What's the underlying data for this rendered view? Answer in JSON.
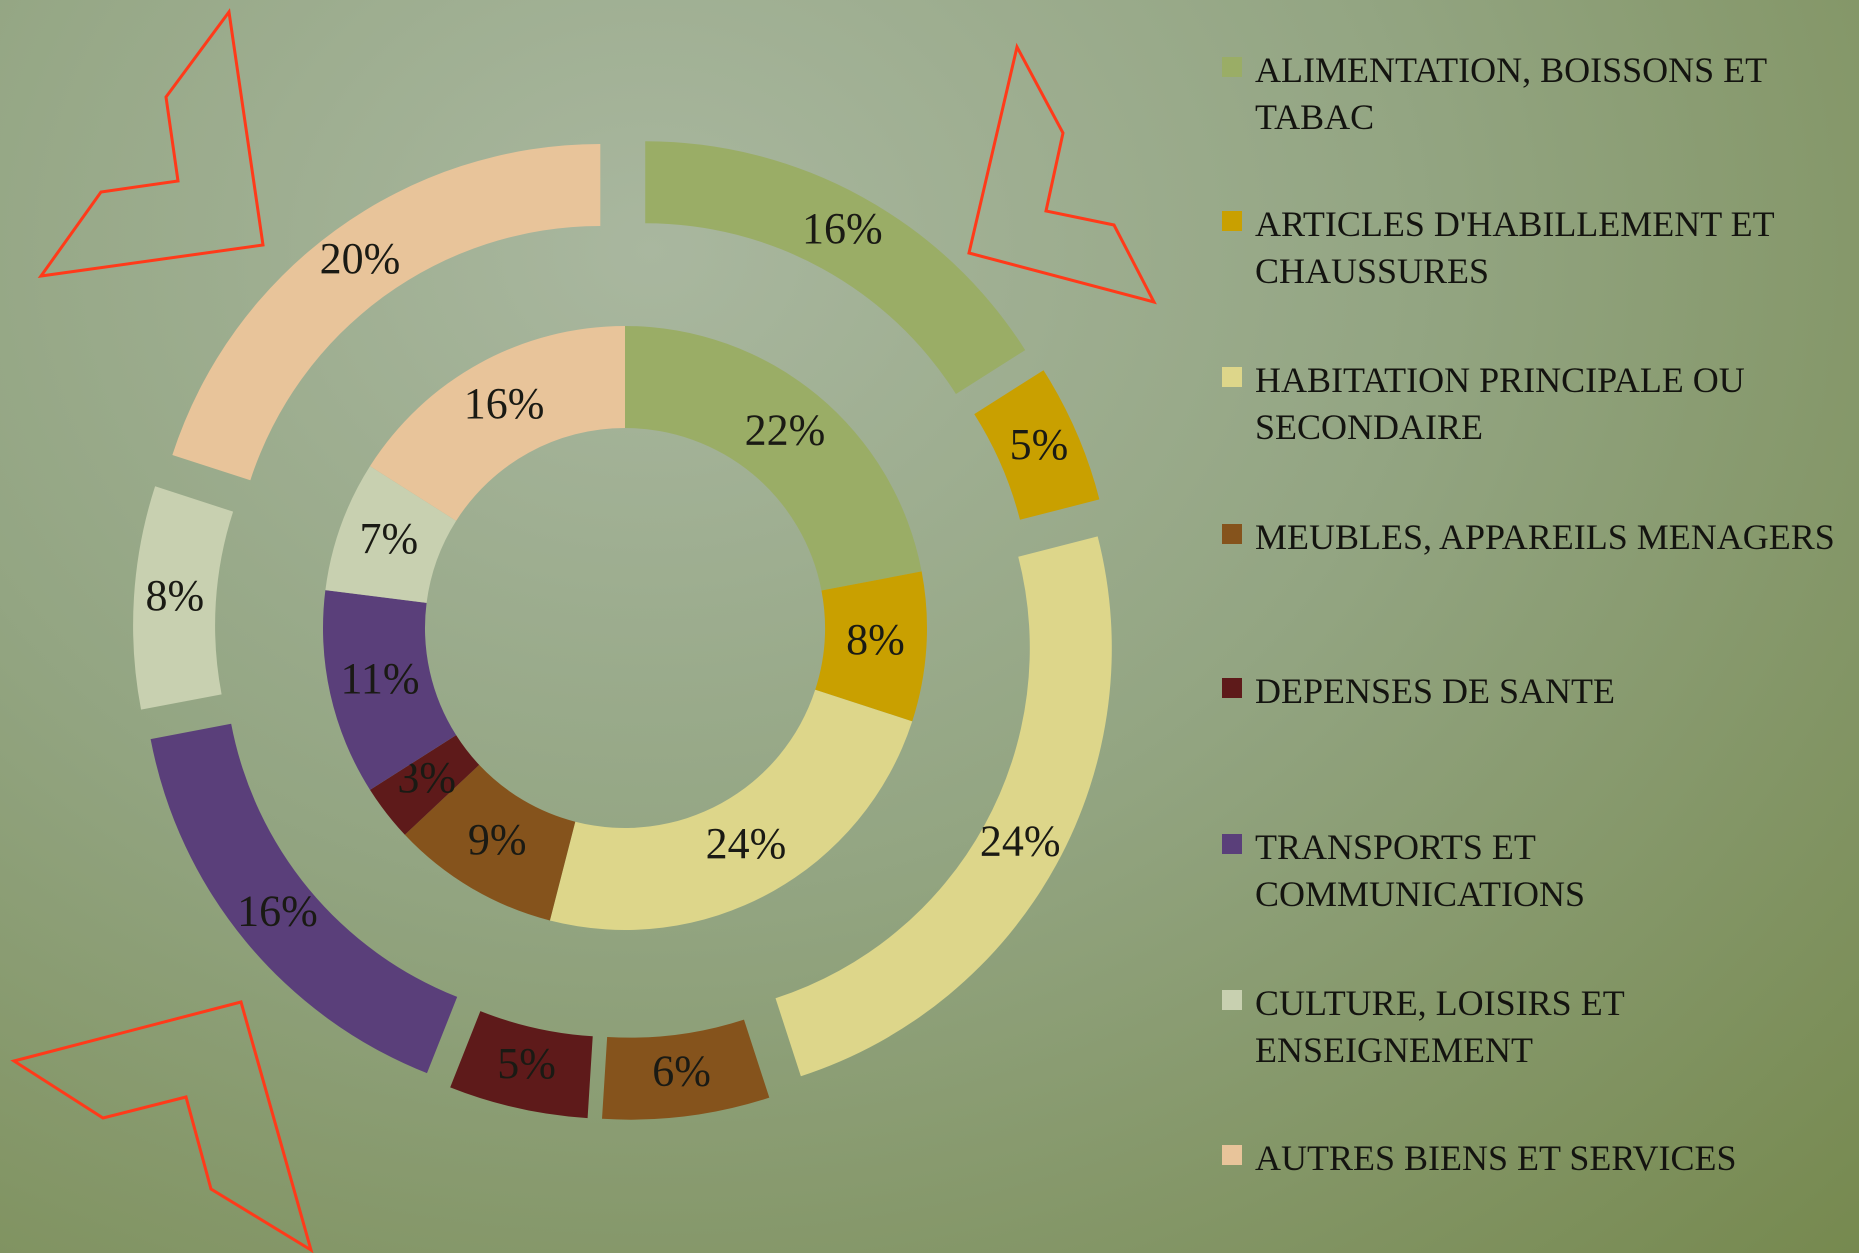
{
  "chart_data": {
    "type": "donut",
    "categories": [
      "ALIMENTATION, BOISSONS ET TABAC",
      "ARTICLES D'HABILLEMENT ET CHAUSSURES",
      "HABITATION PRINCIPALE OU SECONDAIRE",
      "MEUBLES, APPAREILS MENAGERS",
      "DEPENSES DE SANTE",
      "TRANSPORTS ET COMMUNICATIONS",
      "CULTURE, LOISIRS ET ENSEIGNEMENT",
      "AUTRES BIENS ET SERVICES"
    ],
    "colors": [
      "#9aad66",
      "#c9a000",
      "#ddd68a",
      "#85531c",
      "#5e1a1a",
      "#5a3f7a",
      "#c8d0b0",
      "#e8c49a"
    ],
    "series": [
      {
        "values": [
          22,
          8,
          24,
          9,
          3,
          11,
          7,
          16
        ],
        "value_labels": [
          "22%",
          "8%",
          "24%",
          "9%",
          "3%",
          "11%",
          "7%",
          "16%"
        ]
      },
      {
        "values": [
          16,
          5,
          24,
          6,
          5,
          16,
          8,
          20
        ],
        "value_labels": [
          "16%",
          "5%",
          "24%",
          "6%",
          "5%",
          "16%",
          "8%",
          "20%"
        ]
      }
    ]
  }
}
